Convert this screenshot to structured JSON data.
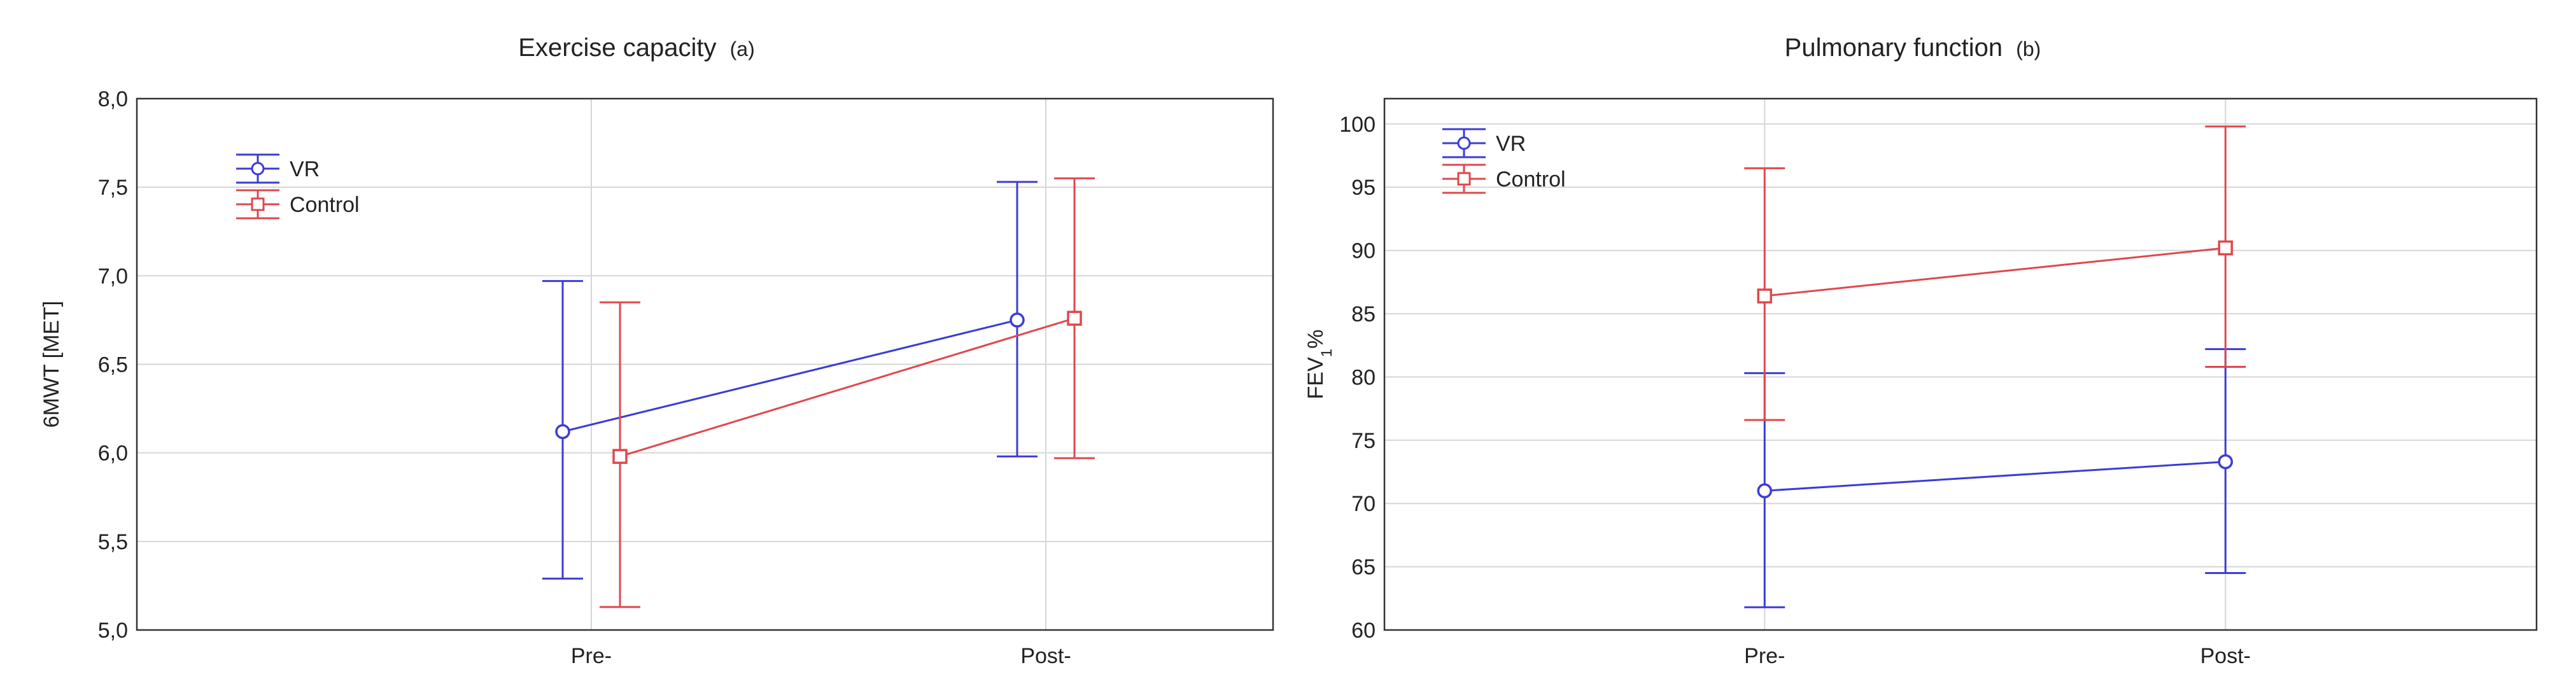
{
  "chart_data": [
    {
      "type": "line",
      "title": "Exercise capacity",
      "subtitle": "(a)",
      "xlabel": "",
      "ylabel": "6MWT [MET]",
      "categories": [
        "Pre-",
        "Post-"
      ],
      "ylim": [
        5.0,
        8.0
      ],
      "yticks": [
        "5,0",
        "5,5",
        "6,0",
        "6,5",
        "7,0",
        "7,5",
        "8,0"
      ],
      "ytick_values": [
        5.0,
        5.5,
        6.0,
        6.5,
        7.0,
        7.5,
        8.0
      ],
      "grid": true,
      "legend_position": "top-left",
      "series": [
        {
          "name": "VR",
          "marker": "circle",
          "color": "#3b3bd6",
          "values": [
            6.12,
            6.75
          ],
          "lower": [
            5.29,
            5.98
          ],
          "upper": [
            6.97,
            7.53
          ]
        },
        {
          "name": "Control",
          "marker": "square",
          "color": "#e0474c",
          "values": [
            5.98,
            6.76
          ],
          "lower": [
            5.13,
            5.97
          ],
          "upper": [
            6.85,
            7.55
          ]
        }
      ]
    },
    {
      "type": "line",
      "title": "Pulmonary function",
      "subtitle": "(b)",
      "xlabel": "",
      "ylabel": "FEV",
      "ylabel_sub": "1",
      "ylabel_suffix": "%",
      "categories": [
        "Pre-",
        "Post-"
      ],
      "ylim": [
        60,
        102
      ],
      "yticks": [
        "60",
        "65",
        "70",
        "75",
        "80",
        "85",
        "90",
        "95",
        "100"
      ],
      "ytick_values": [
        60,
        65,
        70,
        75,
        80,
        85,
        90,
        95,
        100
      ],
      "grid": true,
      "legend_position": "top-left",
      "series": [
        {
          "name": "VR",
          "marker": "circle",
          "color": "#3b3bd6",
          "values": [
            71.0,
            73.3
          ],
          "lower": [
            61.8,
            64.5
          ],
          "upper": [
            80.3,
            82.2
          ]
        },
        {
          "name": "Control",
          "marker": "square",
          "color": "#e0474c",
          "values": [
            86.4,
            90.2
          ],
          "lower": [
            76.6,
            80.8
          ],
          "upper": [
            96.5,
            99.8
          ]
        }
      ]
    }
  ]
}
